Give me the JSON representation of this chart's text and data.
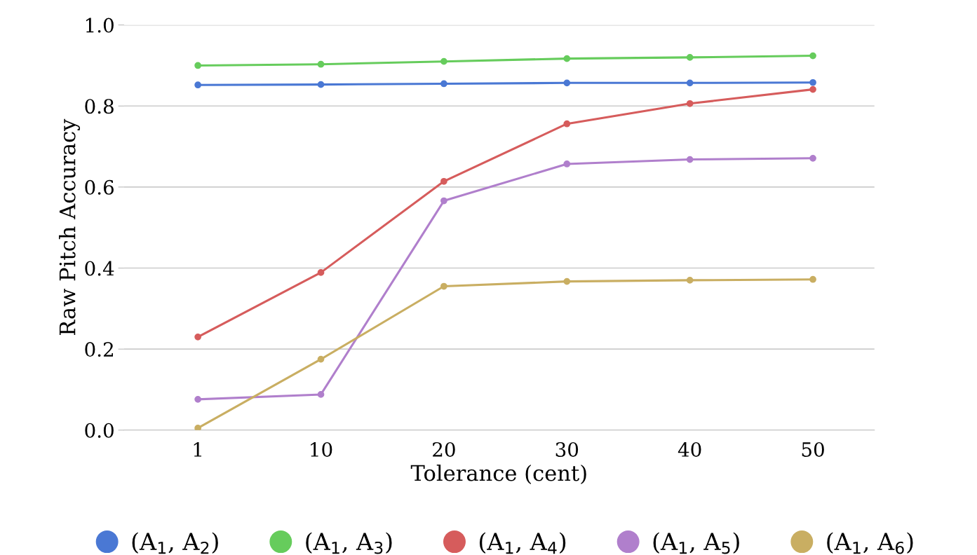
{
  "chart_data": {
    "type": "line",
    "xlabel": "Tolerance (cent)",
    "ylabel": "Raw Pitch Accuracy",
    "categories": [
      "1",
      "10",
      "20",
      "30",
      "40",
      "50"
    ],
    "ylim": [
      0,
      1.0
    ],
    "yticks": [
      {
        "value": 0,
        "label": "0.0"
      },
      {
        "value": 0.2,
        "label": "0.2"
      },
      {
        "value": 0.4,
        "label": "0.4"
      },
      {
        "value": 0.6,
        "label": "0.6"
      },
      {
        "value": 0.8,
        "label": "0.8"
      },
      {
        "value": 1.0,
        "label": "1.0"
      }
    ],
    "grid": "y",
    "legend": "bottom",
    "marker": "circle",
    "line_style": "solid",
    "series": [
      {
        "name": "(A$_{1}$, A$_{2}$)",
        "color": "#4a78d4",
        "values": [
          0.852,
          0.853,
          0.855,
          0.857,
          0.857,
          0.858
        ]
      },
      {
        "name": "(A$_{1}$, A$_{3}$)",
        "color": "#66cc5c",
        "values": [
          0.9,
          0.903,
          0.91,
          0.917,
          0.92,
          0.924
        ]
      },
      {
        "name": "(A$_{1}$, A$_{4}$)",
        "color": "#d65c5c",
        "values": [
          0.23,
          0.389,
          0.614,
          0.756,
          0.806,
          0.841
        ]
      },
      {
        "name": "(A$_{1}$, A$_{5}$)",
        "color": "#b07fcc",
        "values": [
          0.076,
          0.088,
          0.566,
          0.657,
          0.668,
          0.671
        ]
      },
      {
        "name": "(A$_{1}$, A$_{6}$)",
        "color": "#c9ae62",
        "values": [
          0.005,
          0.175,
          0.355,
          0.367,
          0.37,
          0.372
        ]
      }
    ]
  }
}
